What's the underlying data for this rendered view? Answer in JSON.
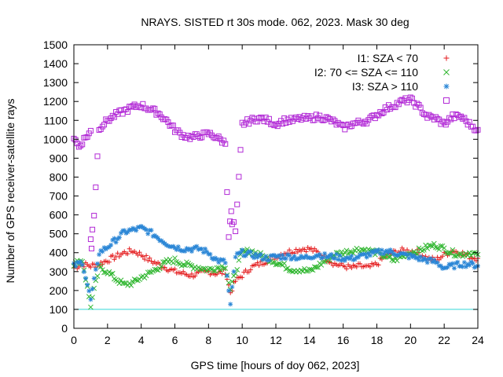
{
  "chart_data": {
    "type": "scatter",
    "title": "NRAYS. SISTED rt 30s mode. 062, 2023. Mask 30 deg",
    "xlabel": "GPS time [hours of doy 062, 2023]",
    "ylabel": "Number of GPS receiver-satellite rays",
    "xlim": [
      0,
      24
    ],
    "ylim": [
      0,
      1500
    ],
    "xticks": [
      0,
      2,
      4,
      6,
      8,
      10,
      12,
      14,
      16,
      18,
      20,
      22,
      24
    ],
    "yticks": [
      0,
      100,
      200,
      300,
      400,
      500,
      600,
      700,
      800,
      900,
      1000,
      1100,
      1200,
      1300,
      1400,
      1500
    ],
    "reference_line": {
      "y": 100,
      "color": "#33d6d6"
    },
    "legend_position": "top-right",
    "series": [
      {
        "name": "I1: SZA < 70",
        "marker": "+",
        "color": "#e41a1c",
        "points": [
          [
            0,
            320
          ],
          [
            0.5,
            340
          ],
          [
            1,
            330
          ],
          [
            1.5,
            340
          ],
          [
            2,
            360
          ],
          [
            2.5,
            380
          ],
          [
            3,
            400
          ],
          [
            3.5,
            410
          ],
          [
            4,
            390
          ],
          [
            4.5,
            360
          ],
          [
            5,
            340
          ],
          [
            5.5,
            320
          ],
          [
            6,
            300
          ],
          [
            6.5,
            290
          ],
          [
            7,
            280
          ],
          [
            7.5,
            290
          ],
          [
            8,
            300
          ],
          [
            8.5,
            290
          ],
          [
            9,
            300
          ],
          [
            9.3,
            190
          ],
          [
            9.6,
            250
          ],
          [
            10,
            280
          ],
          [
            10.5,
            320
          ],
          [
            11,
            340
          ],
          [
            11.5,
            360
          ],
          [
            12,
            380
          ],
          [
            12.5,
            400
          ],
          [
            13,
            410
          ],
          [
            13.5,
            420
          ],
          [
            14,
            420
          ],
          [
            14.5,
            400
          ],
          [
            15,
            370
          ],
          [
            15.5,
            340
          ],
          [
            16,
            330
          ],
          [
            16.5,
            320
          ],
          [
            17,
            330
          ],
          [
            17.5,
            320
          ],
          [
            18,
            340
          ],
          [
            18.5,
            380
          ],
          [
            19,
            400
          ],
          [
            19.5,
            410
          ],
          [
            20,
            410
          ],
          [
            20.5,
            400
          ],
          [
            21,
            370
          ],
          [
            21.5,
            360
          ],
          [
            22,
            390
          ],
          [
            22.5,
            410
          ],
          [
            23,
            400
          ],
          [
            23.5,
            380
          ],
          [
            24,
            370
          ]
        ]
      },
      {
        "name": "I2: 70 <= SZA <= 110",
        "marker": "x",
        "color": "#2fb62f",
        "points": [
          [
            0,
            340
          ],
          [
            0.5,
            360
          ],
          [
            1,
            120
          ],
          [
            1.5,
            320
          ],
          [
            2,
            300
          ],
          [
            2.5,
            260
          ],
          [
            3,
            230
          ],
          [
            3.5,
            240
          ],
          [
            4,
            270
          ],
          [
            4.5,
            290
          ],
          [
            5,
            320
          ],
          [
            5.5,
            350
          ],
          [
            6,
            360
          ],
          [
            6.5,
            340
          ],
          [
            7,
            330
          ],
          [
            7.5,
            320
          ],
          [
            8,
            310
          ],
          [
            8.5,
            320
          ],
          [
            9,
            330
          ],
          [
            9.3,
            200
          ],
          [
            9.6,
            300
          ],
          [
            10,
            400
          ],
          [
            10.5,
            410
          ],
          [
            11,
            390
          ],
          [
            11.5,
            370
          ],
          [
            12,
            350
          ],
          [
            12.5,
            330
          ],
          [
            13,
            310
          ],
          [
            13.5,
            310
          ],
          [
            14,
            300
          ],
          [
            14.5,
            330
          ],
          [
            15,
            360
          ],
          [
            15.5,
            390
          ],
          [
            16,
            400
          ],
          [
            16.5,
            410
          ],
          [
            17,
            420
          ],
          [
            17.5,
            410
          ],
          [
            18,
            400
          ],
          [
            18.5,
            380
          ],
          [
            19,
            360
          ],
          [
            19.5,
            380
          ],
          [
            20,
            400
          ],
          [
            20.5,
            410
          ],
          [
            21,
            430
          ],
          [
            21.5,
            440
          ],
          [
            22,
            420
          ],
          [
            22.5,
            400
          ],
          [
            23,
            390
          ],
          [
            23.5,
            400
          ],
          [
            24,
            390
          ]
        ]
      },
      {
        "name": "I3: SZA > 110",
        "marker": "*",
        "color": "#2a86d6",
        "points": [
          [
            0,
            330
          ],
          [
            0.5,
            350
          ],
          [
            1,
            150
          ],
          [
            1.5,
            400
          ],
          [
            2,
            430
          ],
          [
            2.5,
            470
          ],
          [
            3,
            510
          ],
          [
            3.5,
            520
          ],
          [
            4,
            530
          ],
          [
            4.5,
            510
          ],
          [
            5,
            480
          ],
          [
            5.5,
            450
          ],
          [
            6,
            430
          ],
          [
            6.5,
            420
          ],
          [
            7,
            420
          ],
          [
            7.5,
            420
          ],
          [
            8,
            400
          ],
          [
            8.5,
            360
          ],
          [
            9,
            350
          ],
          [
            9.3,
            120
          ],
          [
            9.6,
            380
          ],
          [
            10,
            400
          ],
          [
            10.5,
            390
          ],
          [
            11,
            380
          ],
          [
            11.5,
            370
          ],
          [
            12,
            380
          ],
          [
            12.5,
            380
          ],
          [
            13,
            380
          ],
          [
            13.5,
            370
          ],
          [
            14,
            380
          ],
          [
            14.5,
            390
          ],
          [
            15,
            380
          ],
          [
            15.5,
            380
          ],
          [
            16,
            370
          ],
          [
            16.5,
            370
          ],
          [
            17,
            380
          ],
          [
            17.5,
            390
          ],
          [
            18,
            400
          ],
          [
            18.5,
            410
          ],
          [
            19,
            400
          ],
          [
            19.5,
            390
          ],
          [
            20,
            380
          ],
          [
            20.5,
            370
          ],
          [
            21,
            360
          ],
          [
            21.5,
            350
          ],
          [
            22,
            320
          ],
          [
            22.5,
            330
          ],
          [
            23,
            340
          ],
          [
            23.5,
            340
          ],
          [
            24,
            330
          ]
        ]
      },
      {
        "name": "",
        "marker": "square",
        "color": "#b22ad6",
        "points": [
          [
            0,
            1010
          ],
          [
            0.3,
            960
          ],
          [
            0.6,
            1000
          ],
          [
            1,
            1040
          ],
          [
            1.5,
            1060
          ],
          [
            2,
            1100
          ],
          [
            2.5,
            1130
          ],
          [
            3,
            1150
          ],
          [
            3.5,
            1170
          ],
          [
            4,
            1180
          ],
          [
            4.5,
            1160
          ],
          [
            5,
            1140
          ],
          [
            5.5,
            1100
          ],
          [
            6,
            1050
          ],
          [
            6.5,
            1020
          ],
          [
            7,
            1010
          ],
          [
            7.5,
            1020
          ],
          [
            8,
            1030
          ],
          [
            8.5,
            1010
          ],
          [
            9,
            980
          ],
          [
            9.2,
            490
          ],
          [
            9.4,
            540
          ],
          [
            9.6,
            500
          ],
          [
            10,
            1080
          ],
          [
            10.5,
            1100
          ],
          [
            11,
            1110
          ],
          [
            11.5,
            1100
          ],
          [
            12,
            1080
          ],
          [
            12.5,
            1100
          ],
          [
            13,
            1100
          ],
          [
            13.5,
            1110
          ],
          [
            14,
            1110
          ],
          [
            14.5,
            1120
          ],
          [
            15,
            1110
          ],
          [
            15.5,
            1090
          ],
          [
            16,
            1060
          ],
          [
            16.5,
            1080
          ],
          [
            17,
            1090
          ],
          [
            17.5,
            1100
          ],
          [
            18,
            1130
          ],
          [
            18.5,
            1160
          ],
          [
            19,
            1180
          ],
          [
            19.5,
            1200
          ],
          [
            20,
            1210
          ],
          [
            20.5,
            1170
          ],
          [
            21,
            1120
          ],
          [
            21.5,
            1110
          ],
          [
            22,
            1080
          ],
          [
            22.5,
            1120
          ],
          [
            23,
            1120
          ],
          [
            23.5,
            1080
          ],
          [
            24,
            1050
          ],
          [
            1,
            470
          ],
          [
            1.1,
            530
          ],
          [
            1.2,
            600
          ],
          [
            1.05,
            430
          ],
          [
            9.35,
            620
          ],
          [
            9.5,
            560
          ]
        ]
      }
    ]
  }
}
